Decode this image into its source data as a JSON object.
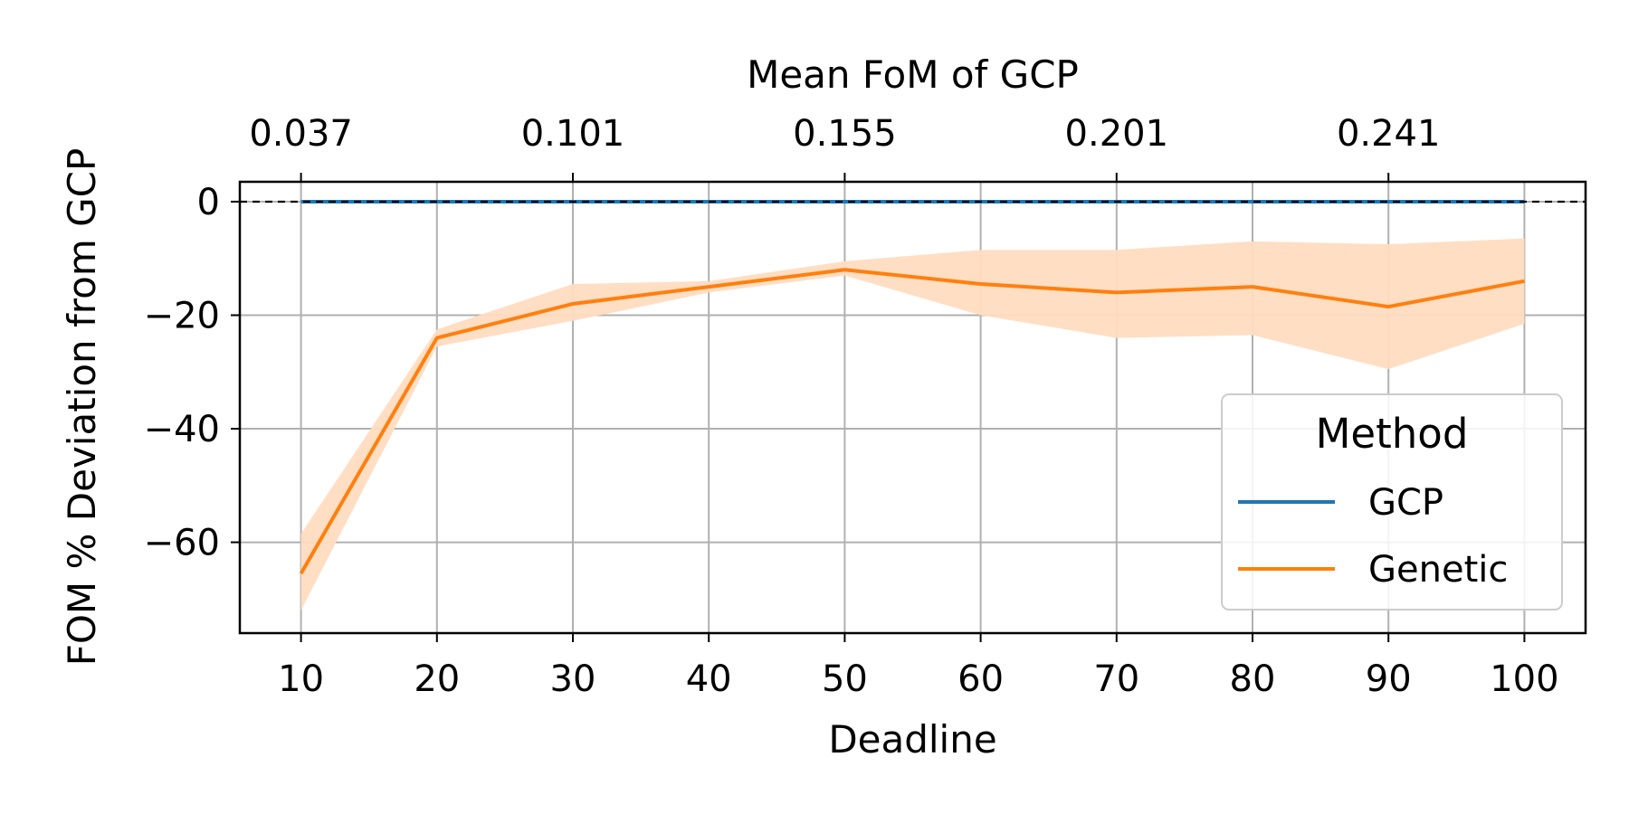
{
  "chart_data": {
    "type": "line",
    "xlabel": "Deadline",
    "ylabel": "FOM % Deviation from GCP",
    "top_xlabel": "Mean FoM of GCP",
    "x": [
      10,
      20,
      30,
      40,
      50,
      60,
      70,
      80,
      90,
      100
    ],
    "xlim": [
      5.5,
      104.5
    ],
    "ylim": [
      -76,
      3.5
    ],
    "xticks": [
      10,
      20,
      30,
      40,
      50,
      60,
      70,
      80,
      90,
      100
    ],
    "xtick_labels": [
      "10",
      "20",
      "30",
      "40",
      "50",
      "60",
      "70",
      "80",
      "90",
      "100"
    ],
    "yticks": [
      0,
      -20,
      -40,
      -60
    ],
    "ytick_labels": [
      "0",
      "−20",
      "−40",
      "−60"
    ],
    "top_xticks": [
      10,
      30,
      50,
      70,
      90
    ],
    "top_xtick_labels": [
      "0.037",
      "0.101",
      "0.155",
      "0.201",
      "0.241"
    ],
    "grid": true,
    "reference_line": 0,
    "legend_title": "Method",
    "legend_position": "lower-right",
    "series": [
      {
        "name": "GCP",
        "color": "#1f77b4",
        "values": [
          0,
          0,
          0,
          0,
          0,
          0,
          0,
          0,
          0,
          0
        ]
      },
      {
        "name": "Genetic",
        "color": "#ff7f0e",
        "band_color": "#ffdcc0",
        "values": [
          -65.5,
          -24,
          -18,
          -15,
          -12,
          -14.5,
          -16,
          -15,
          -18.5,
          -14
        ],
        "lower": [
          -72,
          -25.5,
          -21,
          -16,
          -13,
          -20,
          -24,
          -23.5,
          -29.5,
          -21.5
        ],
        "upper": [
          -58.5,
          -22.5,
          -14.5,
          -14,
          -10.5,
          -8.5,
          -8.5,
          -7,
          -7.5,
          -6.5
        ]
      }
    ]
  }
}
